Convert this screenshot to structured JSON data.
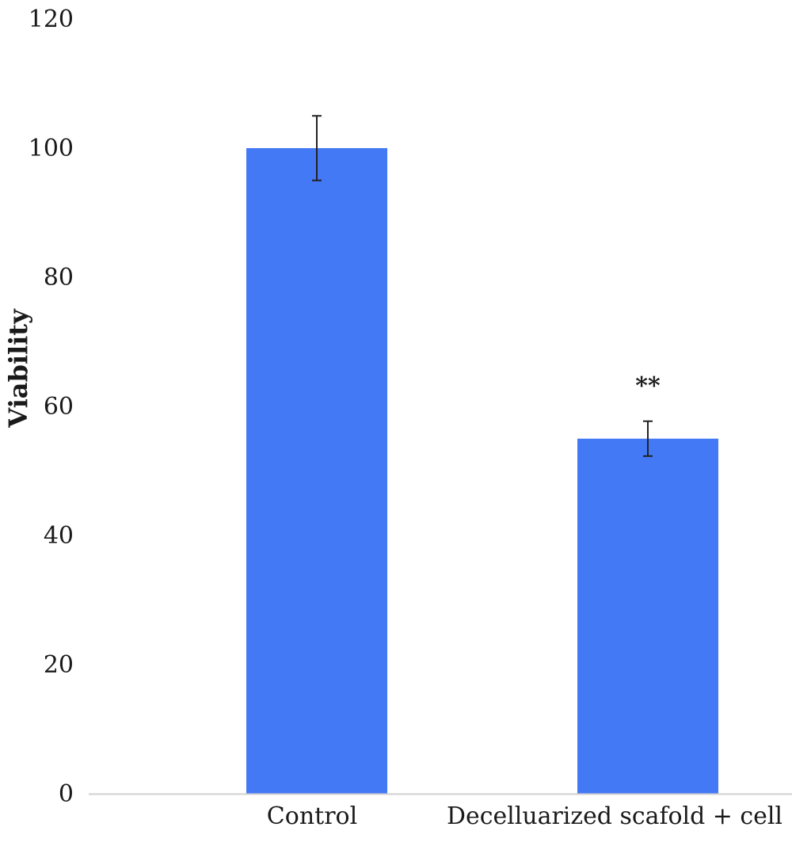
{
  "chart_data": {
    "type": "bar",
    "categories": [
      "Control",
      "Decelluarized scafold + cell"
    ],
    "values": [
      100,
      55
    ],
    "error": [
      5,
      2.7
    ],
    "annotations": [
      {
        "category": "Decelluarized scafold + cell",
        "text": "**"
      }
    ],
    "title": "",
    "xlabel": "",
    "ylabel": "Viability",
    "ylim": [
      0,
      120
    ],
    "yticks": [
      0,
      20,
      40,
      60,
      80,
      100,
      120
    ],
    "bar_color": "#4479F5",
    "error_color": "#222222",
    "axis_color": "#d0d0d0",
    "grid": false,
    "legend": "none"
  }
}
